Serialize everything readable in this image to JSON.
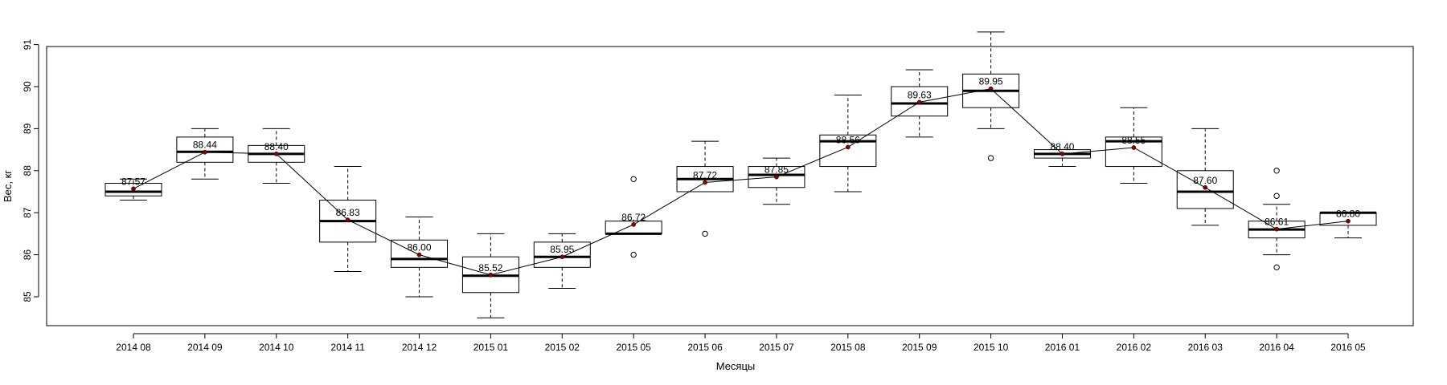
{
  "chart_data": {
    "type": "box",
    "xlabel": "Месяцы",
    "ylabel": "Вес, кг",
    "ylim": [
      84.2,
      91.8
    ],
    "yticks": [
      85,
      86,
      87,
      88,
      89,
      90,
      91
    ],
    "grid": false,
    "categories": [
      "2014 08",
      "2014 09",
      "2014 10",
      "2014 11",
      "2014 12",
      "2015 01",
      "2015 02",
      "2015 05",
      "2015 06",
      "2015 07",
      "2015 08",
      "2015 09",
      "2015 10",
      "2016 01",
      "2016 02",
      "2016 03",
      "2016 04",
      "2016 05"
    ],
    "boxes": [
      {
        "min": 87.3,
        "q1": 87.4,
        "median": 87.5,
        "q3": 87.7,
        "max": 87.8,
        "outliers": []
      },
      {
        "min": 87.8,
        "q1": 88.2,
        "median": 88.45,
        "q3": 88.8,
        "max": 89.0,
        "outliers": []
      },
      {
        "min": 87.7,
        "q1": 88.2,
        "median": 88.4,
        "q3": 88.6,
        "max": 89.0,
        "outliers": []
      },
      {
        "min": 85.6,
        "q1": 86.3,
        "median": 86.8,
        "q3": 87.3,
        "max": 88.1,
        "outliers": []
      },
      {
        "min": 85.0,
        "q1": 85.7,
        "median": 85.9,
        "q3": 86.35,
        "max": 86.9,
        "outliers": []
      },
      {
        "min": 84.5,
        "q1": 85.1,
        "median": 85.5,
        "q3": 85.95,
        "max": 86.5,
        "outliers": []
      },
      {
        "min": 85.2,
        "q1": 85.7,
        "median": 85.95,
        "q3": 86.3,
        "max": 86.5,
        "outliers": []
      },
      {
        "min": 86.5,
        "q1": 86.5,
        "median": 86.5,
        "q3": 86.8,
        "max": 86.8,
        "outliers": [
          87.8,
          86.0
        ]
      },
      {
        "min": 87.5,
        "q1": 87.5,
        "median": 87.8,
        "q3": 88.1,
        "max": 88.7,
        "outliers": [
          86.5
        ]
      },
      {
        "min": 87.2,
        "q1": 87.6,
        "median": 87.9,
        "q3": 88.1,
        "max": 88.3,
        "outliers": []
      },
      {
        "min": 87.5,
        "q1": 88.1,
        "median": 88.7,
        "q3": 88.85,
        "max": 89.8,
        "outliers": []
      },
      {
        "min": 88.8,
        "q1": 89.3,
        "median": 89.6,
        "q3": 90.0,
        "max": 90.4,
        "outliers": []
      },
      {
        "min": 89.0,
        "q1": 89.5,
        "median": 89.9,
        "q3": 90.3,
        "max": 91.3,
        "outliers": [
          88.3
        ]
      },
      {
        "min": 88.1,
        "q1": 88.3,
        "median": 88.4,
        "q3": 88.5,
        "max": 88.5,
        "outliers": []
      },
      {
        "min": 87.7,
        "q1": 88.1,
        "median": 88.7,
        "q3": 88.8,
        "max": 89.5,
        "outliers": []
      },
      {
        "min": 86.7,
        "q1": 87.1,
        "median": 87.5,
        "q3": 88.0,
        "max": 89.0,
        "outliers": []
      },
      {
        "min": 86.0,
        "q1": 86.4,
        "median": 86.6,
        "q3": 86.8,
        "max": 87.2,
        "outliers": [
          88.0,
          87.4,
          85.7
        ]
      },
      {
        "min": 86.4,
        "q1": 86.7,
        "median": 87.0,
        "q3": 87.0,
        "max": 87.0,
        "outliers": []
      }
    ],
    "means": [
      87.57,
      88.44,
      88.4,
      86.83,
      86.0,
      85.52,
      85.95,
      86.72,
      87.72,
      87.85,
      88.56,
      89.63,
      89.95,
      88.4,
      88.55,
      87.6,
      86.61,
      86.8
    ],
    "mean_labels": [
      "87.57",
      "88.44",
      "88.40",
      "86.83",
      "86.00",
      "85.52",
      "85.95",
      "86.72",
      "87.72",
      "87.85",
      "88.56",
      "89.63",
      "89.95",
      "88.40",
      "88.55",
      "87.60",
      "86.61",
      "86.80"
    ],
    "colors": {
      "mean_point": "#8b0000",
      "box": "#000000",
      "line": "#000000"
    }
  }
}
